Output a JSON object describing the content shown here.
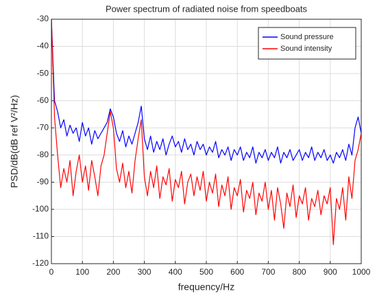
{
  "chart_data": {
    "type": "line",
    "title": "Power spectrum of radiated noise from speedboats",
    "xlabel": "frequency/Hz",
    "ylabel": "PSD/dB(dB ref V²/Hz)",
    "x": [
      0,
      10,
      20,
      30,
      40,
      50,
      60,
      70,
      80,
      90,
      100,
      110,
      120,
      130,
      140,
      150,
      160,
      170,
      180,
      190,
      200,
      210,
      220,
      230,
      240,
      250,
      260,
      270,
      280,
      290,
      300,
      310,
      320,
      330,
      340,
      350,
      360,
      370,
      380,
      390,
      400,
      410,
      420,
      430,
      440,
      450,
      460,
      470,
      480,
      490,
      500,
      510,
      520,
      530,
      540,
      550,
      560,
      570,
      580,
      590,
      600,
      610,
      620,
      630,
      640,
      650,
      660,
      670,
      680,
      690,
      700,
      710,
      720,
      730,
      740,
      750,
      760,
      770,
      780,
      790,
      800,
      810,
      820,
      830,
      840,
      850,
      860,
      870,
      880,
      890,
      900,
      910,
      920,
      930,
      940,
      950,
      960,
      970,
      980,
      990,
      1000
    ],
    "series": [
      {
        "name": "Sound pressure",
        "color": "#0000ff",
        "values": [
          -30,
          -60,
          -64,
          -70,
          -67,
          -73,
          -69,
          -72,
          -70,
          -75,
          -68,
          -73,
          -70,
          -76,
          -71,
          -74,
          -72,
          -70,
          -68,
          -63,
          -66,
          -72,
          -75,
          -71,
          -77,
          -73,
          -76,
          -72,
          -68,
          -62,
          -74,
          -78,
          -73,
          -79,
          -75,
          -78,
          -74,
          -80,
          -76,
          -73,
          -77,
          -75,
          -79,
          -74,
          -78,
          -76,
          -80,
          -75,
          -78,
          -76,
          -80,
          -77,
          -79,
          -75,
          -81,
          -78,
          -80,
          -77,
          -82,
          -78,
          -80,
          -77,
          -82,
          -79,
          -81,
          -77,
          -83,
          -79,
          -81,
          -78,
          -82,
          -79,
          -81,
          -77,
          -83,
          -79,
          -81,
          -78,
          -82,
          -80,
          -78,
          -82,
          -79,
          -81,
          -77,
          -82,
          -79,
          -81,
          -78,
          -82,
          -80,
          -83,
          -79,
          -81,
          -78,
          -82,
          -76,
          -80,
          -70,
          -66,
          -72
        ]
      },
      {
        "name": "Sound intensity",
        "color": "#ff0000",
        "values": [
          -30,
          -66,
          -80,
          -92,
          -85,
          -90,
          -82,
          -95,
          -86,
          -80,
          -90,
          -84,
          -93,
          -82,
          -88,
          -95,
          -84,
          -80,
          -72,
          -64,
          -70,
          -85,
          -90,
          -83,
          -92,
          -86,
          -94,
          -82,
          -74,
          -67,
          -88,
          -95,
          -86,
          -92,
          -84,
          -96,
          -88,
          -91,
          -85,
          -97,
          -89,
          -92,
          -86,
          -98,
          -90,
          -87,
          -95,
          -88,
          -93,
          -86,
          -97,
          -90,
          -94,
          -87,
          -99,
          -91,
          -95,
          -88,
          -100,
          -92,
          -95,
          -89,
          -101,
          -93,
          -96,
          -90,
          -102,
          -94,
          -97,
          -90,
          -100,
          -93,
          -104,
          -92,
          -98,
          -107,
          -94,
          -99,
          -91,
          -103,
          -95,
          -98,
          -92,
          -104,
          -96,
          -99,
          -93,
          -102,
          -95,
          -98,
          -92,
          -113,
          -96,
          -100,
          -92,
          -104,
          -88,
          -96,
          -82,
          -78,
          -72
        ]
      }
    ],
    "xlim": [
      0,
      1000
    ],
    "xticks": [
      0,
      100,
      200,
      300,
      400,
      500,
      600,
      700,
      800,
      900,
      1000
    ],
    "ylim": [
      -120,
      -30
    ],
    "yticks": [
      -30,
      -40,
      -50,
      -60,
      -70,
      -80,
      -90,
      -100,
      -110,
      -120
    ],
    "grid": true,
    "legend": "upper right"
  }
}
